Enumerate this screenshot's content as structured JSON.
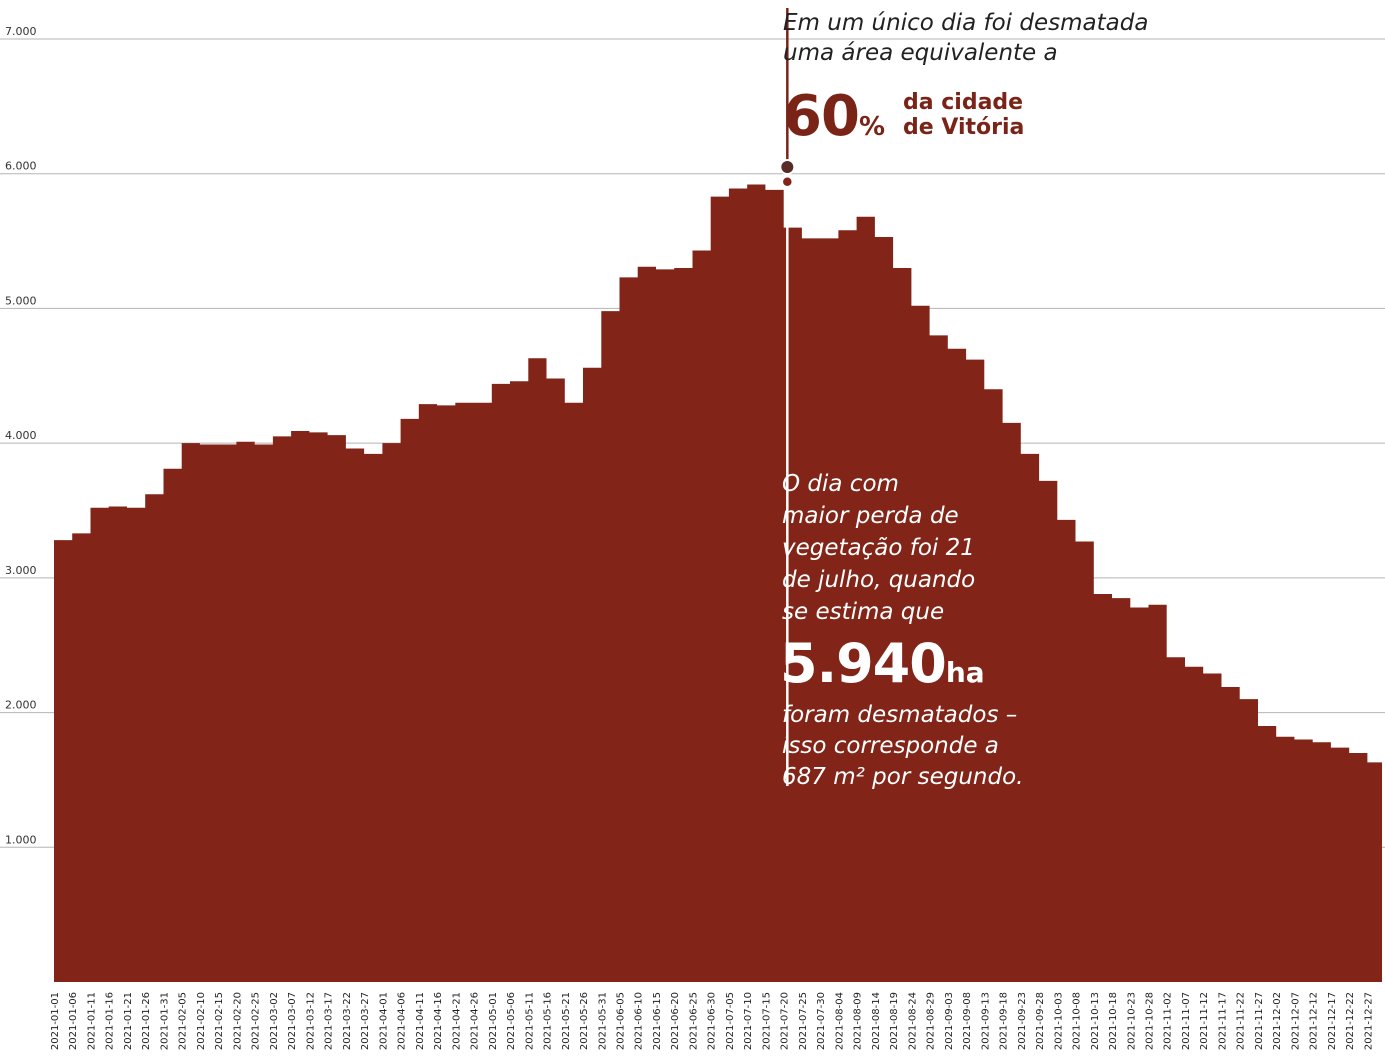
{
  "chart_data": {
    "type": "area",
    "title": "",
    "xlabel": "",
    "ylabel": "",
    "ylim": [
      0,
      7000
    ],
    "grid": true,
    "color": "#822518",
    "y_ticks": [
      {
        "value": 1000,
        "label": "1.000"
      },
      {
        "value": 2000,
        "label": "2.000"
      },
      {
        "value": 3000,
        "label": "3.000"
      },
      {
        "value": 4000,
        "label": "4.000"
      },
      {
        "value": 5000,
        "label": "5.000"
      },
      {
        "value": 6000,
        "label": "6.000"
      },
      {
        "value": 7000,
        "label": "7.000"
      }
    ],
    "x_tick_labels": [
      "2021-01-01",
      "2021-01-06",
      "2021-01-11",
      "2021-01-16",
      "2021-01-21",
      "2021-01-26",
      "2021-01-31",
      "2021-02-05",
      "2021-02-10",
      "2021-02-15",
      "2021-02-20",
      "2021-02-25",
      "2021-03-02",
      "2021-03-07",
      "2021-03-12",
      "2021-03-17",
      "2021-03-22",
      "2021-03-27",
      "2021-04-01",
      "2021-04-06",
      "2021-04-11",
      "2021-04-16",
      "2021-04-21",
      "2021-04-26",
      "2021-05-01",
      "2021-05-06",
      "2021-05-11",
      "2021-05-16",
      "2021-05-21",
      "2021-05-26",
      "2021-05-31",
      "2021-06-05",
      "2021-06-10",
      "2021-06-15",
      "2021-06-20",
      "2021-06-25",
      "2021-06-30",
      "2021-07-05",
      "2021-07-10",
      "2021-07-15",
      "2021-07-20",
      "2021-07-25",
      "2021-07-30",
      "2021-08-04",
      "2021-08-09",
      "2021-08-14",
      "2021-08-19",
      "2021-08-24",
      "2021-08-29",
      "2021-09-03",
      "2021-09-08",
      "2021-09-13",
      "2021-09-18",
      "2021-09-23",
      "2021-09-28",
      "2021-10-03",
      "2021-10-08",
      "2021-10-13",
      "2021-10-18",
      "2021-10-23",
      "2021-10-28",
      "2021-11-02",
      "2021-11-07",
      "2021-11-12",
      "2021-11-17",
      "2021-11-22",
      "2021-11-27",
      "2021-12-02",
      "2021-12-07",
      "2021-12-12",
      "2021-12-17",
      "2021-12-22",
      "2021-12-27"
    ],
    "series": [
      {
        "x_start": "2021-01-01",
        "x_step_days": 5,
        "values": [
          3280,
          3330,
          3520,
          3530,
          3520,
          3620,
          3810,
          4000,
          3990,
          3990,
          4010,
          3990,
          4050,
          4090,
          4080,
          4060,
          3960,
          3920,
          4000,
          4180,
          4290,
          4280,
          4300,
          4300,
          4440,
          4460,
          4630,
          4480,
          4300,
          4560,
          4980,
          5230,
          5310,
          5290,
          5300,
          5430,
          5830,
          5890,
          5920,
          5880,
          5600,
          5520,
          5520,
          5580,
          5680,
          5530,
          5300,
          5020,
          4800,
          4700,
          4620,
          4400,
          4150,
          3920,
          3720,
          3430,
          3270,
          2880,
          2850,
          2780,
          2800,
          2410,
          2340,
          2290,
          2190,
          2100,
          1900,
          1820,
          1800,
          1780,
          1740,
          1700,
          1630
        ]
      }
    ],
    "highlight": {
      "x": "2021-07-21",
      "value": 5940
    }
  },
  "annotations": {
    "top_line1": "Em um único dia foi desmatada",
    "top_line2": "uma área equivalente a",
    "big_percent_number": "60",
    "big_percent_sign": "%",
    "city_line1": "da cidade",
    "city_line2": "de Vitória",
    "mid_lines": [
      "O dia com",
      "maior perda de",
      "vegetação foi 21",
      "de julho, quando",
      "se estima que"
    ],
    "big_value_number": "5.940",
    "big_value_unit": "ha",
    "bottom_lines": [
      "foram desmatados –",
      "isso corresponde a",
      "687 m² por segundo."
    ]
  }
}
